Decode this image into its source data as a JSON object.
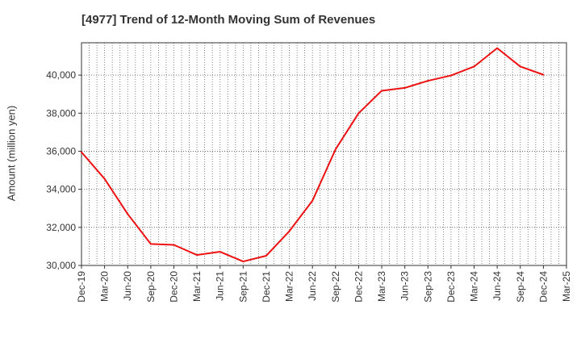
{
  "title": "[4977]  Trend of 12-Month Moving Sum of Revenues",
  "chart_data": {
    "type": "line",
    "title": "[4977]  Trend of 12-Month Moving Sum of Revenues",
    "xlabel": "",
    "ylabel": "Amount (million yen)",
    "ylim": [
      30000,
      41700
    ],
    "yticks": [
      30000,
      32000,
      34000,
      36000,
      38000,
      40000
    ],
    "ytick_labels": [
      "30,000",
      "32,000",
      "34,000",
      "36,000",
      "38,000",
      "40,000"
    ],
    "x_tick_labels": [
      "Dec-19",
      "Mar-20",
      "Jun-20",
      "Sep-20",
      "Dec-20",
      "Mar-21",
      "Jun-21",
      "Sep-21",
      "Dec-21",
      "Mar-22",
      "Jun-22",
      "Sep-22",
      "Dec-22",
      "Mar-23",
      "Jun-23",
      "Sep-23",
      "Dec-23",
      "Mar-24",
      "Jun-24",
      "Sep-24",
      "Dec-24",
      "Mar-25"
    ],
    "grid": true,
    "series": [
      {
        "color": "#ee1111",
        "x": [
          "Dec-19",
          "Mar-20",
          "Jun-20",
          "Sep-20",
          "Dec-20",
          "Mar-21",
          "Jun-21",
          "Sep-21",
          "Dec-21",
          "Mar-22",
          "Jun-22",
          "Sep-22",
          "Dec-22",
          "Mar-23",
          "Jun-23",
          "Sep-23",
          "Dec-23",
          "Mar-24",
          "Jun-24",
          "Sep-24",
          "Dec-24"
        ],
        "values": [
          35950,
          34550,
          32700,
          31130,
          31080,
          30550,
          30720,
          30210,
          30510,
          31800,
          33400,
          36100,
          38000,
          39180,
          39330,
          39700,
          39980,
          40450,
          41420,
          40450,
          40020
        ]
      }
    ]
  }
}
